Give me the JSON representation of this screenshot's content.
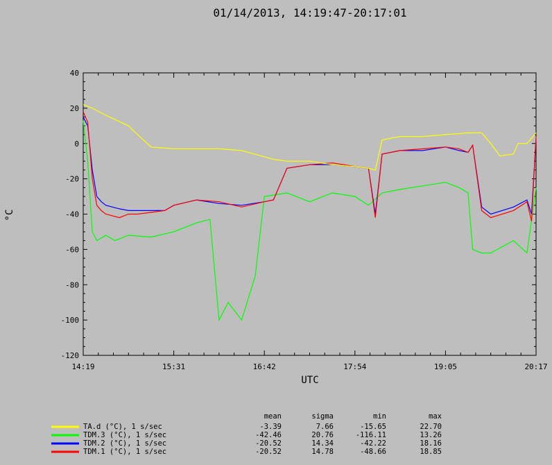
{
  "chart_data": {
    "type": "line",
    "title": "01/14/2013, 14:19:47-20:17:01",
    "xlabel": "UTC",
    "ylabel": "°C",
    "ylim": [
      -120,
      40
    ],
    "yticks": [
      40,
      20,
      0,
      -20,
      -40,
      -60,
      -80,
      -100,
      -120
    ],
    "x_tick_labels": [
      "14:19",
      "15:31",
      "16:42",
      "17:54",
      "19:05",
      "20:17"
    ],
    "stats_headers": [
      "mean",
      "sigma",
      "min",
      "max"
    ],
    "series": [
      {
        "name": "TA.d (°C), 1 s/sec",
        "color": "#ffff00",
        "stats": [
          "-3.39",
          "7.66",
          "-15.65",
          "22.70"
        ],
        "x": [
          0,
          0.02,
          0.05,
          0.1,
          0.12,
          0.15,
          0.2,
          0.25,
          0.3,
          0.35,
          0.42,
          0.45,
          0.5,
          0.55,
          0.6,
          0.63,
          0.645,
          0.66,
          0.7,
          0.75,
          0.8,
          0.85,
          0.88,
          0.9,
          0.92,
          0.95,
          0.96,
          0.98,
          1.0
        ],
        "y": [
          22,
          20,
          16,
          10,
          5,
          -2,
          -3,
          -3,
          -3,
          -4,
          -9,
          -10,
          -10,
          -12,
          -13,
          -14,
          -15,
          2,
          4,
          4,
          5,
          6,
          6,
          0,
          -7,
          -6,
          0,
          0,
          6
        ]
      },
      {
        "name": "TDM.3 (°C), 1 s/sec",
        "color": "#00ff00",
        "stats": [
          "-42.46",
          "20.76",
          "-116.11",
          "13.26"
        ],
        "x": [
          0,
          0.01,
          0.02,
          0.03,
          0.05,
          0.07,
          0.1,
          0.15,
          0.2,
          0.25,
          0.28,
          0.3,
          0.32,
          0.35,
          0.38,
          0.4,
          0.45,
          0.5,
          0.55,
          0.6,
          0.63,
          0.66,
          0.7,
          0.75,
          0.8,
          0.83,
          0.85,
          0.86,
          0.88,
          0.9,
          0.95,
          0.98,
          1.0
        ],
        "y": [
          13,
          -10,
          -50,
          -55,
          -52,
          -55,
          -52,
          -53,
          -50,
          -45,
          -43,
          -100,
          -90,
          -100,
          -75,
          -30,
          -28,
          -33,
          -28,
          -30,
          -35,
          -28,
          -26,
          -24,
          -22,
          -25,
          -28,
          -60,
          -62,
          -62,
          -55,
          -62,
          -25
        ]
      },
      {
        "name": "TDM.2 (°C), 1 s/sec",
        "color": "#0000ff",
        "stats": [
          "-20.52",
          "14.34",
          "-42.22",
          "18.16"
        ],
        "x": [
          0,
          0.01,
          0.02,
          0.03,
          0.04,
          0.05,
          0.08,
          0.1,
          0.12,
          0.15,
          0.18,
          0.2,
          0.25,
          0.3,
          0.35,
          0.4,
          0.42,
          0.45,
          0.5,
          0.55,
          0.6,
          0.63,
          0.645,
          0.66,
          0.7,
          0.75,
          0.8,
          0.83,
          0.85,
          0.86,
          0.88,
          0.9,
          0.95,
          0.98,
          0.99,
          1.0
        ],
        "y": [
          15,
          10,
          -15,
          -30,
          -33,
          -35,
          -37,
          -38,
          -38,
          -38,
          -38,
          -35,
          -32,
          -34,
          -35,
          -33,
          -32,
          -14,
          -12,
          -12,
          -13,
          -14,
          -40,
          -6,
          -4,
          -4,
          -2,
          -4,
          -5,
          -1,
          -36,
          -40,
          -36,
          -32,
          -40,
          3
        ]
      },
      {
        "name": "TDM.1 (°C), 1 s/sec",
        "color": "#ff0000",
        "stats": [
          "-20.52",
          "14.78",
          "-48.66",
          "18.85"
        ],
        "x": [
          0,
          0.01,
          0.02,
          0.03,
          0.04,
          0.05,
          0.08,
          0.1,
          0.12,
          0.15,
          0.18,
          0.2,
          0.25,
          0.3,
          0.35,
          0.4,
          0.42,
          0.45,
          0.5,
          0.55,
          0.6,
          0.63,
          0.645,
          0.66,
          0.7,
          0.75,
          0.8,
          0.83,
          0.85,
          0.86,
          0.88,
          0.9,
          0.95,
          0.98,
          0.99,
          1.0
        ],
        "y": [
          18,
          12,
          -20,
          -35,
          -38,
          -40,
          -42,
          -40,
          -40,
          -39,
          -38,
          -35,
          -32,
          -33,
          -36,
          -33,
          -32,
          -14,
          -12,
          -11,
          -13,
          -14,
          -42,
          -6,
          -4,
          -3,
          -2,
          -3,
          -5,
          -1,
          -38,
          -42,
          -38,
          -33,
          -44,
          4
        ]
      }
    ]
  }
}
